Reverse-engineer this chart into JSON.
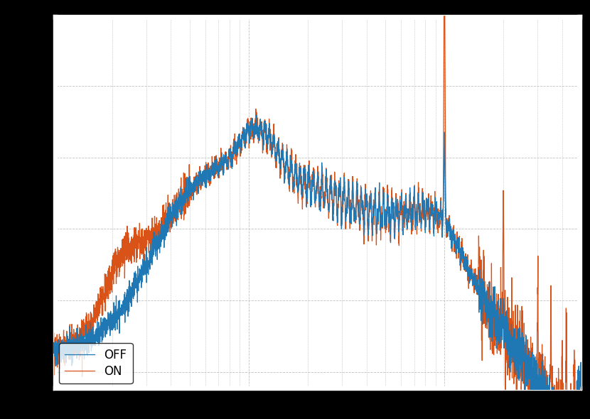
{
  "color_off": "#1f77b4",
  "color_on": "#d95319",
  "background_color": "#ffffff",
  "grid_color": "#c0c0c0",
  "legend_labels": [
    "OFF",
    "ON"
  ],
  "linewidth": 0.9,
  "figsize": [
    8.3,
    5.9
  ],
  "dpi": 100,
  "outer_bg": "#000000",
  "legend_fontsize": 12,
  "grid_linestyle": "--",
  "grid_linewidth": 0.6
}
